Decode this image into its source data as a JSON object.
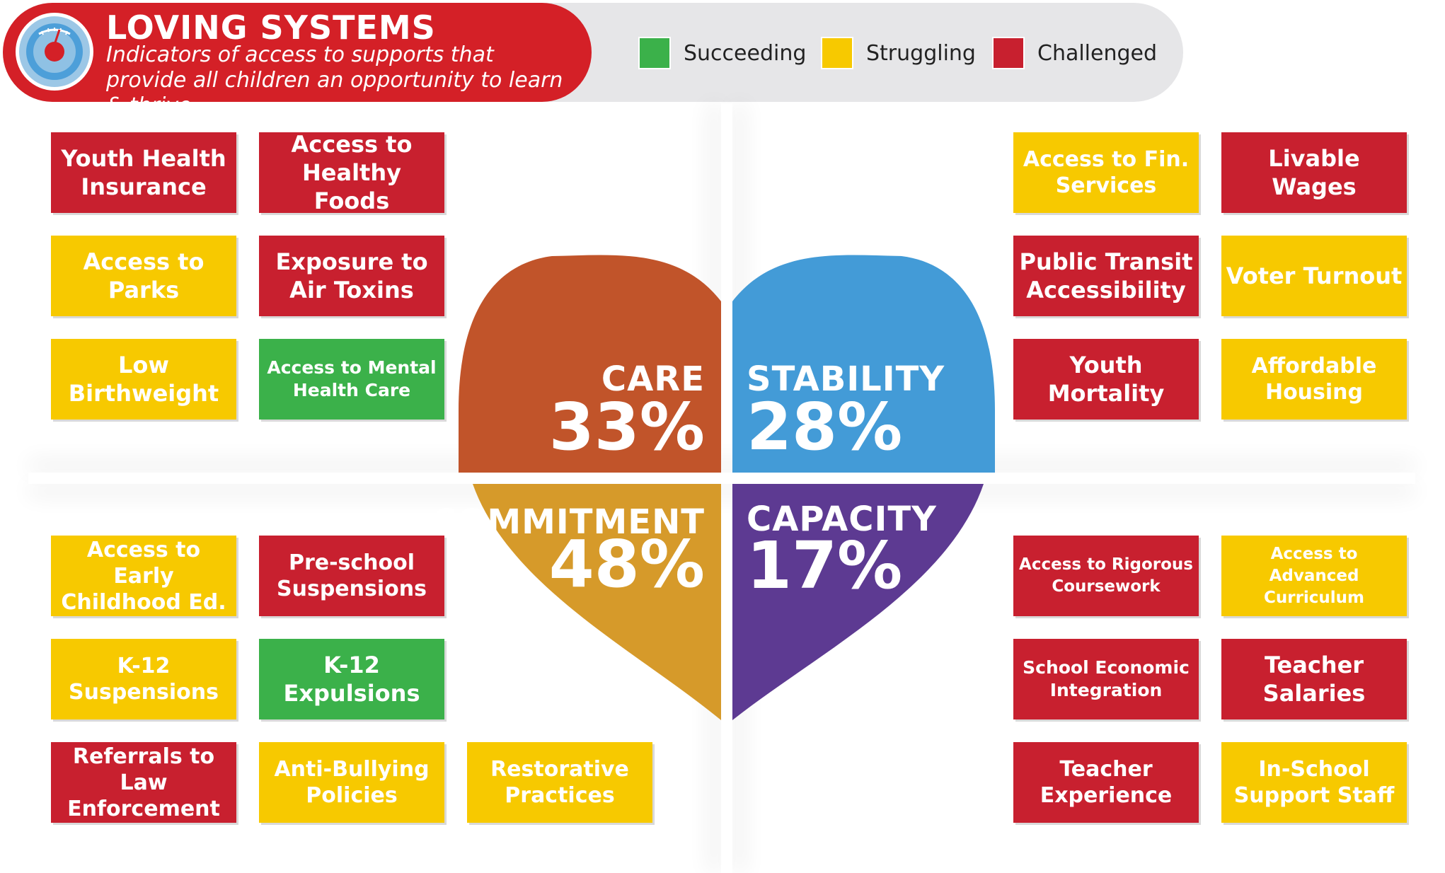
{
  "header": {
    "title": "LOVING SYSTEMS",
    "subtitle": "Indicators of access to supports that provide all children an opportunity to learn & thrive",
    "logo_icon": "scale-gauge-icon"
  },
  "legend": [
    {
      "label": "Succeeding",
      "color": "#3bb14a"
    },
    {
      "label": "Struggling",
      "color": "#f7c900"
    },
    {
      "label": "Challenged",
      "color": "#c8202f"
    }
  ],
  "quadrants": {
    "care": {
      "label": "CARE",
      "percent": "33%",
      "color": "#c1542a"
    },
    "stability": {
      "label": "STABILITY",
      "percent": "28%",
      "color": "#439bd7"
    },
    "commitment": {
      "label": "COMMITMENT",
      "percent": "48%",
      "color": "#d69a2a"
    },
    "capacity": {
      "label": "CAPACITY",
      "percent": "17%",
      "color": "#5d3a92"
    }
  },
  "indicators": {
    "care": [
      {
        "label": "Youth Health Insurance",
        "status": "Challenged"
      },
      {
        "label": "Access to Healthy Foods",
        "status": "Challenged"
      },
      {
        "label": "Access to Parks",
        "status": "Struggling"
      },
      {
        "label": "Exposure to Air Toxins",
        "status": "Challenged"
      },
      {
        "label": "Low Birthweight",
        "status": "Struggling"
      },
      {
        "label": "Access to Mental Health Care",
        "status": "Succeeding"
      }
    ],
    "stability": [
      {
        "label": "Access to Fin. Services",
        "status": "Struggling"
      },
      {
        "label": "Livable Wages",
        "status": "Challenged"
      },
      {
        "label": "Public Transit Accessibility",
        "status": "Challenged"
      },
      {
        "label": "Voter Turnout",
        "status": "Struggling"
      },
      {
        "label": "Youth Mortality",
        "status": "Challenged"
      },
      {
        "label": "Affordable Housing",
        "status": "Struggling"
      }
    ],
    "commitment": [
      {
        "label": "Access to Early Childhood Ed.",
        "status": "Struggling"
      },
      {
        "label": "Pre-school Suspensions",
        "status": "Challenged"
      },
      {
        "label": "K-12 Suspensions",
        "status": "Struggling"
      },
      {
        "label": "K-12 Expulsions",
        "status": "Succeeding"
      },
      {
        "label": "Referrals to Law Enforcement",
        "status": "Challenged"
      },
      {
        "label": "Anti-Bullying Policies",
        "status": "Struggling"
      },
      {
        "label": "Restorative Practices",
        "status": "Struggling"
      }
    ],
    "capacity": [
      {
        "label": "Access to Rigorous Coursework",
        "status": "Challenged"
      },
      {
        "label": "Access to Advanced Curriculum",
        "status": "Struggling"
      },
      {
        "label": "School Economic Integration",
        "status": "Challenged"
      },
      {
        "label": "Teacher Salaries",
        "status": "Challenged"
      },
      {
        "label": "Teacher Experience",
        "status": "Challenged"
      },
      {
        "label": "In-School Support Staff",
        "status": "Struggling"
      }
    ]
  }
}
